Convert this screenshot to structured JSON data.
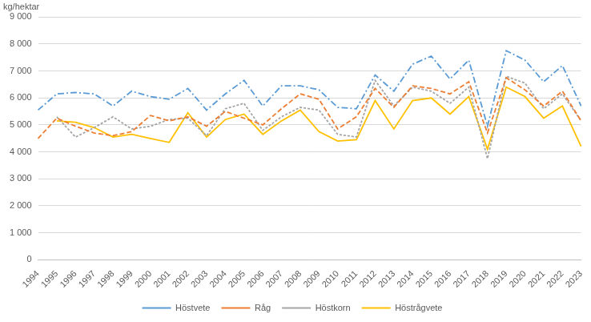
{
  "chart_data": {
    "type": "line",
    "ylabel": "kg/hektar",
    "categories": [
      "1994",
      "1995",
      "1996",
      "1997",
      "1998",
      "1999",
      "2000",
      "2001",
      "2002",
      "2003",
      "2004",
      "2005",
      "2006",
      "2007",
      "2008",
      "2009",
      "2010",
      "2011",
      "2012",
      "2013",
      "2014",
      "2015",
      "2016",
      "2017",
      "2018",
      "2019",
      "2020",
      "2021",
      "2022",
      "2023"
    ],
    "series": [
      {
        "name": "Höstvete",
        "color": "#5b9bd5",
        "line_style": "dash_dot",
        "values": [
          5550,
          6150,
          6200,
          6150,
          5700,
          6250,
          6050,
          5950,
          6350,
          5550,
          6150,
          6650,
          5700,
          6450,
          6450,
          6300,
          5650,
          5600,
          6850,
          6250,
          7250,
          7550,
          6700,
          7400,
          4950,
          7750,
          7400,
          6600,
          7200,
          5700
        ]
      },
      {
        "name": "Råg",
        "color": "#ed7d31",
        "line_style": "dashed",
        "values": [
          4500,
          5250,
          4950,
          4700,
          4600,
          4750,
          5350,
          5150,
          5300,
          4950,
          5500,
          5250,
          5000,
          5600,
          6150,
          5950,
          4850,
          5300,
          6350,
          5650,
          6450,
          6350,
          6150,
          6600,
          4700,
          6750,
          6300,
          5700,
          6250,
          5150
        ]
      },
      {
        "name": "Höstkorn",
        "color": "#a5a5a5",
        "line_style": "dotted",
        "values": [
          null,
          5300,
          4550,
          4900,
          5300,
          4850,
          4950,
          5200,
          5250,
          4600,
          5600,
          5800,
          4800,
          5300,
          5650,
          5550,
          4650,
          4550,
          6650,
          5700,
          6400,
          6250,
          5800,
          6400,
          3750,
          6800,
          6550,
          5600,
          6150,
          5150
        ]
      },
      {
        "name": "Höstrågvete",
        "color": "#ffc000",
        "line_style": "solid",
        "values": [
          null,
          5150,
          5100,
          4900,
          4550,
          4650,
          4500,
          4350,
          5450,
          4550,
          5200,
          5400,
          4650,
          5150,
          5550,
          4750,
          4400,
          4450,
          5900,
          4850,
          5900,
          6000,
          5400,
          6050,
          4100,
          6400,
          6050,
          5250,
          5700,
          4200
        ]
      }
    ],
    "ylim": [
      0,
      9000
    ],
    "yticks": [
      0,
      {
        "value": 1000,
        "label": "1 000"
      },
      {
        "value": 2000,
        "label": "2 000"
      },
      {
        "value": 3000,
        "label": "3 000"
      },
      {
        "value": 4000,
        "label": "4 000"
      },
      {
        "value": 5000,
        "label": "5 000"
      },
      {
        "value": 6000,
        "label": "6 000"
      },
      {
        "value": 7000,
        "label": "7 000"
      },
      {
        "value": 8000,
        "label": "8 000"
      },
      {
        "value": 9000,
        "label": "9 000"
      }
    ],
    "grid": true,
    "legend": "bottom"
  }
}
